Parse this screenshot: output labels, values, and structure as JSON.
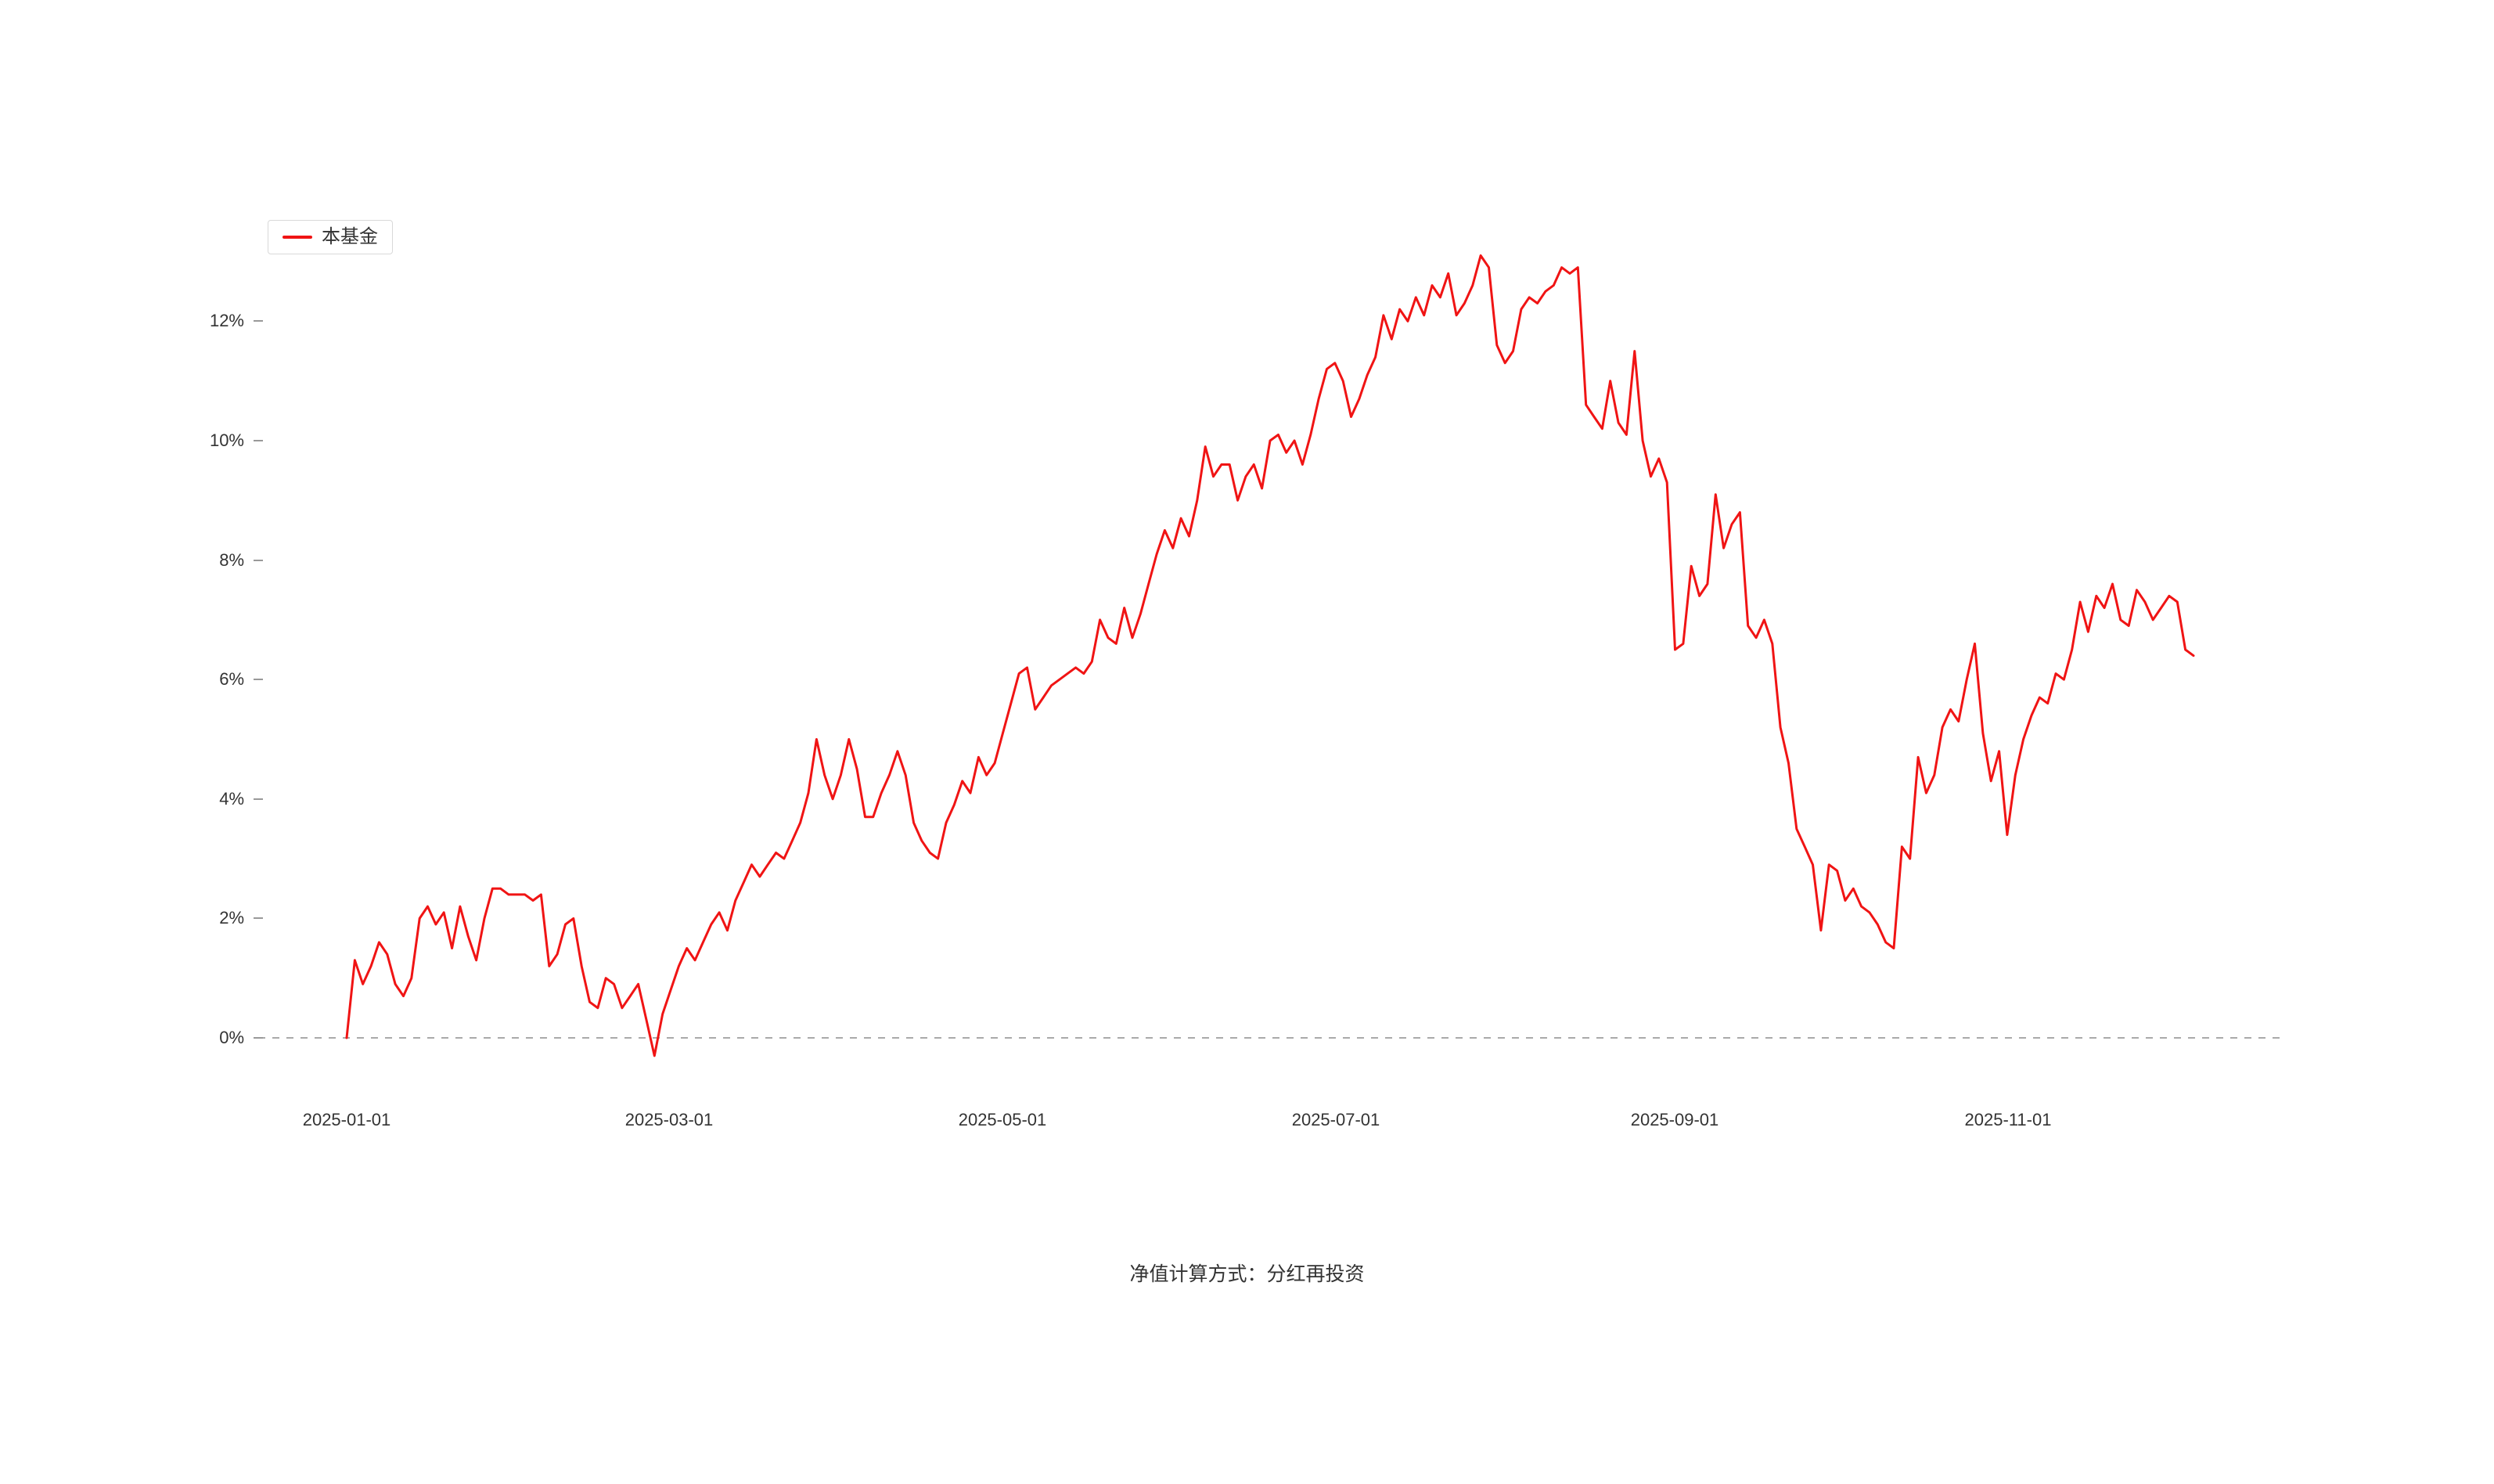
{
  "chart_data": {
    "type": "line",
    "title": "",
    "xlabel": "",
    "ylabel": "",
    "x_start": "2025-01-01",
    "x_end": "2025-12-05",
    "x_ticks": [
      "2025-01-01",
      "2025-03-01",
      "2025-05-01",
      "2025-07-01",
      "2025-09-01",
      "2025-11-01"
    ],
    "y_ticks": [
      "0%",
      "2%",
      "4%",
      "6%",
      "8%",
      "10%",
      "12%"
    ],
    "ylim": [
      -1,
      13.5
    ],
    "grid": false,
    "legend_position": "top-left",
    "zero_line": {
      "style": "dashed",
      "color": "#aaaaaa"
    },
    "footnote": "净值计算方式：分红再投资",
    "series": [
      {
        "name": "本基金",
        "color": "#f01414",
        "unit": "%",
        "values": [
          0.0,
          1.3,
          0.9,
          1.2,
          1.6,
          1.4,
          0.9,
          0.7,
          1.0,
          2.0,
          2.2,
          1.9,
          2.1,
          1.5,
          2.2,
          1.7,
          1.3,
          2.0,
          2.5,
          2.5,
          2.4,
          2.4,
          2.4,
          2.3,
          2.4,
          1.2,
          1.4,
          1.9,
          2.0,
          1.2,
          0.6,
          0.5,
          1.0,
          0.9,
          0.5,
          0.7,
          0.9,
          0.3,
          -0.3,
          0.4,
          0.8,
          1.2,
          1.5,
          1.3,
          1.6,
          1.9,
          2.1,
          1.8,
          2.3,
          2.6,
          2.9,
          2.7,
          2.9,
          3.1,
          3.0,
          3.3,
          3.6,
          4.1,
          5.0,
          4.4,
          4.0,
          4.4,
          5.0,
          4.5,
          3.7,
          3.7,
          4.1,
          4.4,
          4.8,
          4.4,
          3.6,
          3.3,
          3.1,
          3.0,
          3.6,
          3.9,
          4.3,
          4.1,
          4.7,
          4.4,
          4.6,
          5.1,
          5.6,
          6.1,
          6.2,
          5.5,
          5.7,
          5.9,
          6.0,
          6.1,
          6.2,
          6.1,
          6.3,
          7.0,
          6.7,
          6.6,
          7.2,
          6.7,
          7.1,
          7.6,
          8.1,
          8.5,
          8.2,
          8.7,
          8.4,
          9.0,
          9.9,
          9.4,
          9.6,
          9.6,
          9.0,
          9.4,
          9.6,
          9.2,
          10.0,
          10.1,
          9.8,
          10.0,
          9.6,
          10.1,
          10.7,
          11.2,
          11.3,
          11.0,
          10.4,
          10.7,
          11.1,
          11.4,
          12.1,
          11.7,
          12.2,
          12.0,
          12.4,
          12.1,
          12.6,
          12.4,
          12.8,
          12.1,
          12.3,
          12.6,
          13.1,
          12.9,
          11.6,
          11.3,
          11.5,
          12.2,
          12.4,
          12.3,
          12.5,
          12.6,
          12.9,
          12.8,
          12.9,
          10.6,
          10.4,
          10.2,
          11.0,
          10.3,
          10.1,
          11.5,
          10.0,
          9.4,
          9.7,
          9.3,
          6.5,
          6.6,
          7.9,
          7.4,
          7.6,
          9.1,
          8.2,
          8.6,
          8.8,
          6.9,
          6.7,
          7.0,
          6.6,
          5.2,
          4.6,
          3.5,
          3.2,
          2.9,
          1.8,
          2.9,
          2.8,
          2.3,
          2.5,
          2.2,
          2.1,
          1.9,
          1.6,
          1.5,
          3.2,
          3.0,
          4.7,
          4.1,
          4.4,
          5.2,
          5.5,
          5.3,
          6.0,
          6.6,
          5.1,
          4.3,
          4.8,
          3.4,
          4.4,
          5.0,
          5.4,
          5.7,
          5.6,
          6.1,
          6.0,
          6.5,
          7.3,
          6.8,
          7.4,
          7.2,
          7.6,
          7.0,
          6.9,
          7.5,
          7.3,
          7.0,
          7.2,
          7.4,
          7.3,
          6.5,
          6.4
        ]
      }
    ]
  }
}
